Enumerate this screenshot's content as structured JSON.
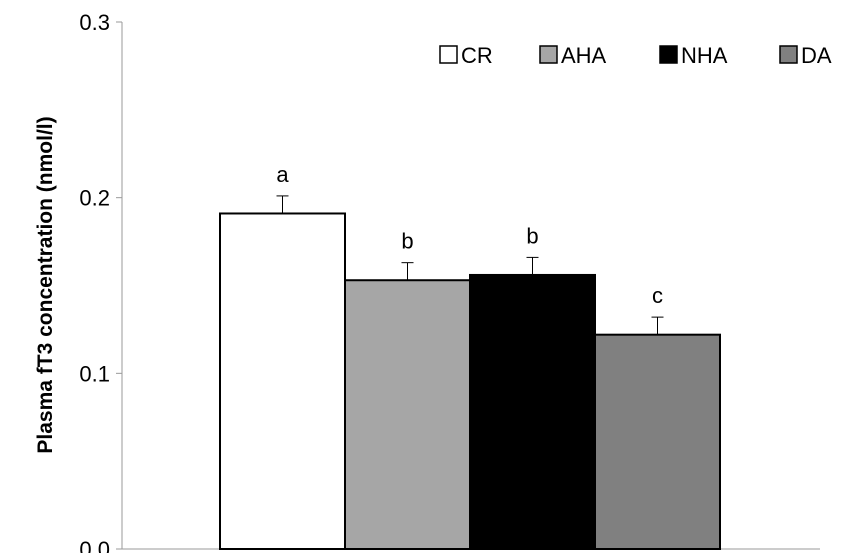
{
  "chart_data": {
    "type": "bar",
    "title": "",
    "xlabel": "",
    "ylabel": "Plasma fT3 concentration (nmol/l)",
    "ylim": [
      0,
      0.3
    ],
    "yticks": [
      "0.0",
      "0.1",
      "0.2",
      "0.3"
    ],
    "grid": false,
    "legend_position": "top-right",
    "categories": [
      "CR",
      "AHA",
      "NHA",
      "DA"
    ],
    "series": [
      {
        "values": [
          0.191,
          0.153,
          0.156,
          0.122
        ],
        "errors": [
          0.01,
          0.01,
          0.01,
          0.01
        ],
        "significance": [
          "a",
          "b",
          "b",
          "c"
        ],
        "colors": [
          "#ffffff",
          "#a6a6a6",
          "#000000",
          "#808080"
        ]
      }
    ],
    "legend": [
      {
        "label": "CR",
        "color": "#ffffff"
      },
      {
        "label": "AHA",
        "color": "#a6a6a6"
      },
      {
        "label": "NHA",
        "color": "#000000"
      },
      {
        "label": "DA",
        "color": "#808080"
      }
    ]
  }
}
